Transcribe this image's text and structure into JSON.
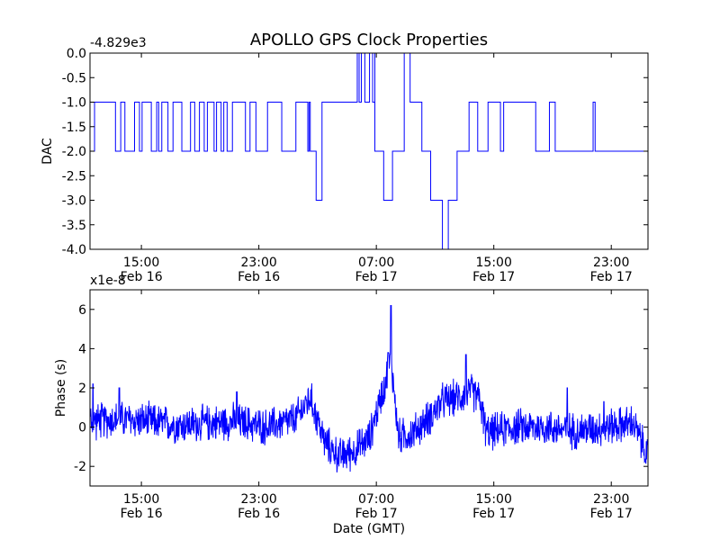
{
  "chart_data": {
    "type": "line",
    "title": "APOLLO GPS Clock Properties",
    "series_color": "#0000ff",
    "subplots": [
      {
        "name": "dac",
        "ylabel": "DAC",
        "offset_label": "-4.829e3",
        "ylim": [
          -4.0,
          0.0
        ],
        "yticks": [
          0.0,
          -0.5,
          -1.0,
          -1.5,
          -2.0,
          -2.5,
          -3.0,
          -3.5,
          -4.0
        ],
        "ytick_labels": [
          "0.0",
          "-0.5",
          "-1.0",
          "-1.5",
          "-2.0",
          "-2.5",
          "-3.0",
          "-3.5",
          "-4.0"
        ],
        "xlim_hours": [
          0,
          38
        ],
        "xticks_hours": [
          3.5,
          11.5,
          19.5,
          27.5,
          35.5
        ],
        "xtick_labels": [
          [
            "15:00",
            "Feb 16"
          ],
          [
            "23:00",
            "Feb 16"
          ],
          [
            "07:00",
            "Feb 17"
          ],
          [
            "15:00",
            "Feb 17"
          ],
          [
            "23:00",
            "Feb 17"
          ]
        ],
        "xlabel": "",
        "segments": [
          {
            "t": [
              0,
              15
            ],
            "base": -2,
            "alt": -1,
            "toggle_rate": 0.55
          },
          {
            "t": [
              15,
              15.4
            ],
            "base": -2,
            "alt": -2,
            "toggle_rate": 0
          },
          {
            "t": [
              15.4,
              15.8
            ],
            "base": -3,
            "alt": -3,
            "toggle_rate": 0
          },
          {
            "t": [
              15.8,
              17.8
            ],
            "base": -1,
            "alt": -1,
            "toggle_rate": 0
          },
          {
            "t": [
              17.8,
              19.4
            ],
            "base": -1,
            "alt": 0,
            "toggle_rate": 0.8
          },
          {
            "t": [
              19.4,
              20
            ],
            "base": -2,
            "alt": -2,
            "toggle_rate": 0
          },
          {
            "t": [
              20,
              20.6
            ],
            "base": -3,
            "alt": -3,
            "toggle_rate": 0
          },
          {
            "t": [
              20.6,
              21.4
            ],
            "base": -2,
            "alt": -2,
            "toggle_rate": 0
          },
          {
            "t": [
              21.4,
              21.8
            ],
            "base": 0,
            "alt": 0,
            "toggle_rate": 0
          },
          {
            "t": [
              21.8,
              22.6
            ],
            "base": -1,
            "alt": -1,
            "toggle_rate": 0
          },
          {
            "t": [
              22.6,
              23.2
            ],
            "base": -2,
            "alt": -2,
            "toggle_rate": 0
          },
          {
            "t": [
              23.2,
              24
            ],
            "base": -3,
            "alt": -3,
            "toggle_rate": 0
          },
          {
            "t": [
              24,
              24.4
            ],
            "base": -4,
            "alt": -4,
            "toggle_rate": 0
          },
          {
            "t": [
              24.4,
              25
            ],
            "base": -3,
            "alt": -3,
            "toggle_rate": 0
          },
          {
            "t": [
              25,
              34.4
            ],
            "base": -2,
            "alt": -1,
            "toggle_rate": 0.3
          },
          {
            "t": [
              34.4,
              38
            ],
            "base": -2,
            "alt": -2,
            "toggle_rate": 0
          }
        ]
      },
      {
        "name": "phase",
        "ylabel": "Phase (s)",
        "offset_label": "x1e-8",
        "ylim": [
          -3,
          7
        ],
        "yticks": [
          -2,
          0,
          2,
          4,
          6
        ],
        "ytick_labels": [
          "-2",
          "0",
          "2",
          "4",
          "6"
        ],
        "xlim_hours": [
          0,
          38
        ],
        "xticks_hours": [
          3.5,
          11.5,
          19.5,
          27.5,
          35.5
        ],
        "xtick_labels": [
          [
            "15:00",
            "Feb 16"
          ],
          [
            "23:00",
            "Feb 16"
          ],
          [
            "07:00",
            "Feb 17"
          ],
          [
            "15:00",
            "Feb 17"
          ],
          [
            "23:00",
            "Feb 17"
          ]
        ],
        "xlabel": "Date (GMT)",
        "trend_points": [
          [
            0,
            0.3
          ],
          [
            2,
            0.4
          ],
          [
            4,
            0.3
          ],
          [
            6,
            0.1
          ],
          [
            8,
            0.2
          ],
          [
            10,
            0.3
          ],
          [
            12,
            0.0
          ],
          [
            14,
            0.4
          ],
          [
            15,
            1.5
          ],
          [
            16,
            -0.8
          ],
          [
            17,
            -1.5
          ],
          [
            18,
            -1.2
          ],
          [
            19,
            -0.6
          ],
          [
            20,
            2.0
          ],
          [
            20.5,
            3.5
          ],
          [
            21,
            -0.5
          ],
          [
            22,
            -0.3
          ],
          [
            23,
            0.4
          ],
          [
            24,
            1.3
          ],
          [
            25,
            1.5
          ],
          [
            26,
            1.8
          ],
          [
            26.5,
            1.5
          ],
          [
            27,
            -0.3
          ],
          [
            29,
            0.0
          ],
          [
            31,
            0.0
          ],
          [
            33,
            -0.2
          ],
          [
            35,
            0.0
          ],
          [
            37,
            0.2
          ],
          [
            38,
            -1.5
          ]
        ],
        "spikes": [
          [
            0.2,
            2.2
          ],
          [
            2,
            2.0
          ],
          [
            10,
            1.8
          ],
          [
            20.3,
            3.8
          ],
          [
            20.5,
            6.2
          ],
          [
            25.6,
            3.7
          ],
          [
            32.5,
            2.0
          ],
          [
            35,
            1.3
          ]
        ],
        "noise_amplitude": 1.1
      }
    ]
  }
}
